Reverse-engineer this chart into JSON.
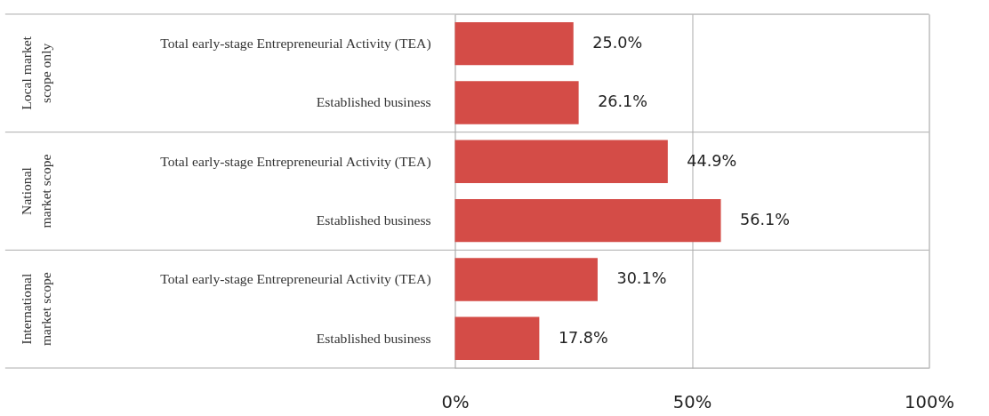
{
  "chart_data": {
    "type": "bar",
    "orientation": "horizontal",
    "categories": [
      "Total early-stage Entrepreneurial Activity (TEA)",
      "Established business",
      "Total early-stage Entrepreneurial Activity (TEA)",
      "Established business",
      "Total early-stage Entrepreneurial Activity (TEA)",
      "Established business"
    ],
    "values": [
      25.0,
      26.1,
      44.9,
      56.1,
      30.1,
      17.8
    ],
    "value_labels": [
      "25.0%",
      "26.1%",
      "44.9%",
      "56.1%",
      "30.1%",
      "17.8%"
    ],
    "color": "#d44c47",
    "xlim": [
      0,
      100
    ],
    "xticks": [
      {
        "value": 0,
        "label": "0%"
      },
      {
        "value": 50,
        "label": "50%"
      },
      {
        "value": 100,
        "label": "100%"
      }
    ],
    "grid": "x",
    "annotations": [
      "Local market\nscope only",
      "National\nmarket scope",
      "International\nmarket scope"
    ]
  }
}
